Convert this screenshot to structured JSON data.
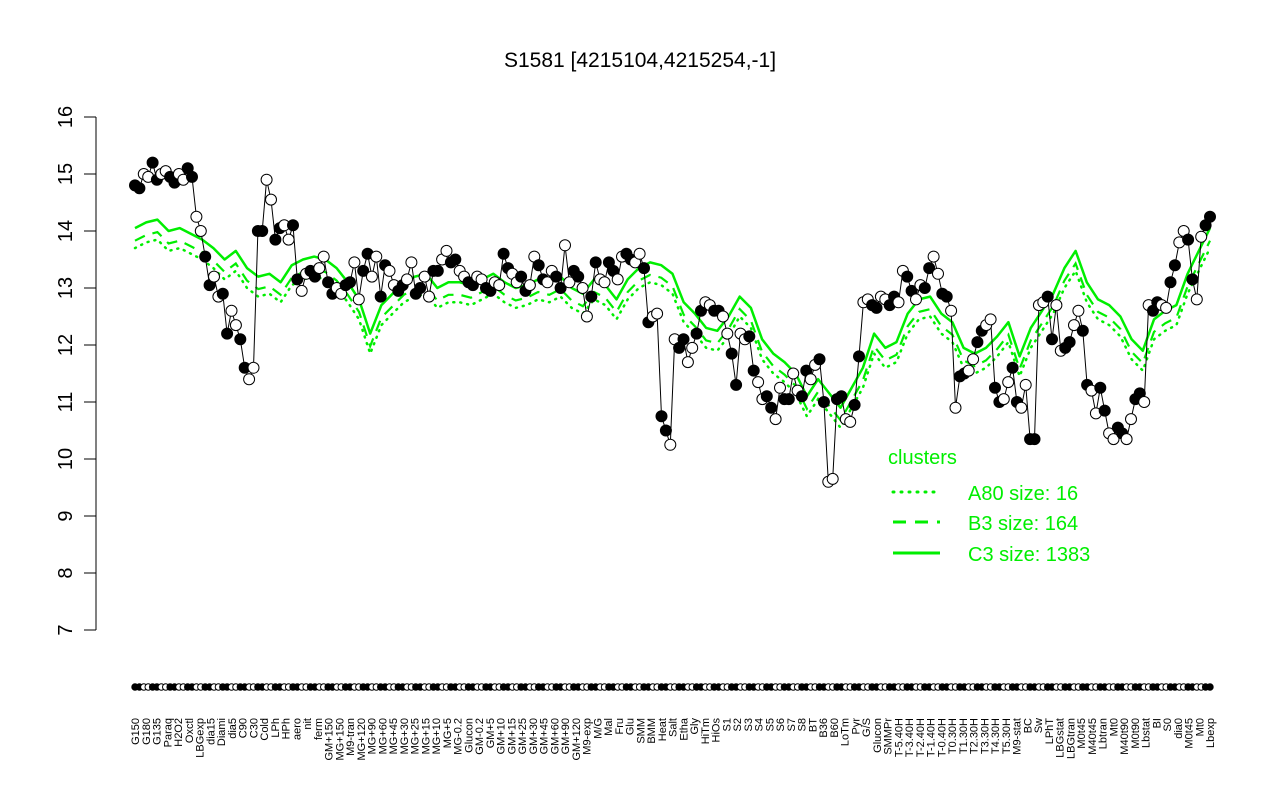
{
  "chart_data": {
    "type": "line",
    "title": "S1581 [4215104,4215254,-1]",
    "xlabel": "",
    "ylabel": "",
    "ylim": [
      7,
      16
    ],
    "yticks": [
      "7",
      "8",
      "9",
      "10",
      "11",
      "12",
      "13",
      "14",
      "15",
      "16"
    ],
    "grid": false,
    "legend_position": "right",
    "legend": {
      "title": "clusters",
      "entries": [
        {
          "label": "A80 size: 16",
          "style": "dotted"
        },
        {
          "label": "B3 size: 164",
          "style": "dashed"
        },
        {
          "label": "C3 size: 1383",
          "style": "solid"
        }
      ]
    },
    "colors": {
      "series": "#00ee00",
      "points": "#000000",
      "axis": "#000000"
    },
    "xtick_labels": [
      "G150",
      "G180",
      "G135",
      "Paraq",
      "H2O2",
      "Oxctl",
      "LBGexp",
      "dia15",
      "Diami",
      "dia5",
      "C90",
      "C30",
      "Cold",
      "LPh",
      "HPh",
      "aero",
      "nit",
      "ferm",
      "GM+150",
      "MG+150",
      "M9-tran",
      "MG+120",
      "MG+90",
      "MG+60",
      "MG+45",
      "MG+30",
      "MG+25",
      "MG+15",
      "MG+10",
      "MG+5",
      "MG-0.2",
      "Glucon",
      "GM-0.2",
      "GM+5",
      "GM+10",
      "GM+15",
      "GM+25",
      "GM+30",
      "GM+45",
      "GM+60",
      "GM+90",
      "GM+120",
      "M9-exp",
      "M/G",
      "Mal",
      "Fru",
      "Glu",
      "SMM",
      "BMM",
      "Heat",
      "Salt",
      "Etha",
      "Gly",
      "HiTm",
      "HiOs",
      "S1",
      "S2",
      "S3",
      "S4",
      "S5",
      "S6",
      "S7",
      "S8",
      "BT",
      "B36",
      "B60",
      "LoTm",
      "Pyr",
      "G/S",
      "Glucon",
      "SMMPr",
      "T-5.40H",
      "T-3.40H",
      "T-2.40H",
      "T-1.40H",
      "T-0.40H",
      "T0.30H",
      "T1.30H",
      "T2.30H",
      "T3.30H",
      "T4.30H",
      "T5.30H",
      "M9-stat",
      "BC",
      "Sw",
      "LPhT",
      "LBGstat",
      "LBGtran",
      "M0t45",
      "M40t45",
      "Lbtran",
      "Mt0",
      "M40t90",
      "M0t90",
      "Lbstat",
      "BI",
      "S0",
      "dia0",
      "M0t45",
      "Mt0",
      "Lbexp"
    ],
    "series_points": [
      14.8,
      14.75,
      15.0,
      14.95,
      15.2,
      14.9,
      15.0,
      15.05,
      14.95,
      14.85,
      15.0,
      14.9,
      15.1,
      14.95,
      14.25,
      14.0,
      13.55,
      13.05,
      13.2,
      12.85,
      12.9,
      12.2,
      12.6,
      12.35,
      12.1,
      11.6,
      11.4,
      11.6,
      14.0,
      14.0,
      14.9,
      14.55,
      13.85,
      14.05,
      14.1,
      13.85,
      14.1,
      13.15,
      12.95,
      13.25,
      13.3,
      13.2,
      13.35,
      13.55,
      13.1,
      12.9,
      13.0,
      12.9,
      13.05,
      13.1,
      13.45,
      12.8,
      13.3,
      13.6,
      13.2,
      13.55,
      12.85,
      13.4,
      13.3,
      13.05,
      12.95,
      13.05,
      13.15,
      13.45,
      12.9,
      13.0,
      13.2,
      12.85,
      13.3,
      13.3,
      13.5,
      13.65,
      13.45,
      13.5,
      13.3,
      13.2,
      13.1,
      13.05,
      13.2,
      13.15,
      13.0,
      12.95,
      13.1,
      13.05,
      13.6,
      13.35,
      13.25,
      13.1,
      13.2,
      12.95,
      13.05,
      13.55,
      13.4,
      13.15,
      13.1,
      13.3,
      13.2,
      13.0,
      13.75,
      13.1,
      13.3,
      13.2,
      13.0,
      12.5,
      12.85,
      13.45,
      13.15,
      13.1,
      13.45,
      13.3,
      13.15,
      13.55,
      13.6,
      13.5,
      13.45,
      13.6,
      13.35,
      12.4,
      12.5,
      12.55,
      10.75,
      10.5,
      10.25,
      12.1,
      11.95,
      12.1,
      11.7,
      11.95,
      12.2,
      12.6,
      12.75,
      12.7,
      12.6,
      12.6,
      12.5,
      12.2,
      11.85,
      11.3,
      12.2,
      12.1,
      12.15,
      11.55,
      11.35,
      11.05,
      11.1,
      10.9,
      10.7,
      11.25,
      11.05,
      11.05,
      11.5,
      11.2,
      11.1,
      11.55,
      11.4,
      11.65,
      11.75,
      11.0,
      9.6,
      9.65,
      11.05,
      11.1,
      10.7,
      10.65,
      10.95,
      11.8,
      12.75,
      12.8,
      12.7,
      12.65,
      12.85,
      12.8,
      12.7,
      12.85,
      12.75,
      13.3,
      13.2,
      12.95,
      12.8,
      13.05,
      13.0,
      13.35,
      13.55,
      13.25,
      12.9,
      12.85,
      12.6,
      10.9,
      11.45,
      11.5,
      11.55,
      11.75,
      12.05,
      12.25,
      12.35,
      12.45,
      11.25,
      11.0,
      11.05,
      11.35,
      11.6,
      11.0,
      10.9,
      11.3,
      10.35,
      10.35,
      12.7,
      12.75,
      12.85,
      12.1,
      12.7,
      11.9,
      11.95,
      12.05,
      12.35,
      12.6,
      12.25,
      11.3,
      11.2,
      10.8,
      11.25,
      10.85,
      10.45,
      10.35,
      10.55,
      10.45,
      10.35,
      10.7,
      11.05,
      11.15,
      11.0,
      12.7,
      12.6,
      12.75,
      12.7,
      12.65,
      13.1,
      13.4,
      13.8,
      14.0,
      13.85,
      13.15,
      12.8,
      13.9,
      14.1,
      14.25
    ],
    "cluster_lines": {
      "C3": [
        14.05,
        14.15,
        14.2,
        14.0,
        14.05,
        13.95,
        13.85,
        13.7,
        13.5,
        13.65,
        13.35,
        13.2,
        13.25,
        13.1,
        13.4,
        13.5,
        13.55,
        13.5,
        13.35,
        13.1,
        12.8,
        12.2,
        12.7,
        12.9,
        13.1,
        13.2,
        13.25,
        13.0,
        13.1,
        13.1,
        13.05,
        13.15,
        13.25,
        13.1,
        13.0,
        13.05,
        13.15,
        13.1,
        13.2,
        13.0,
        12.9,
        13.15,
        13.05,
        12.8,
        13.15,
        13.35,
        13.45,
        13.4,
        13.25,
        12.75,
        12.55,
        12.3,
        12.25,
        12.5,
        12.85,
        12.65,
        12.1,
        11.85,
        11.7,
        11.5,
        11.1,
        11.4,
        11.15,
        10.9,
        11.25,
        11.6,
        12.2,
        11.95,
        12.05,
        12.55,
        12.8,
        12.85,
        12.55,
        12.4,
        11.95,
        11.85,
        11.95,
        12.15,
        12.4,
        11.8,
        12.3,
        12.6,
        12.9,
        13.35,
        13.65,
        13.1,
        12.8,
        12.7,
        12.5,
        12.1,
        11.9,
        12.45,
        12.6,
        12.7,
        13.25,
        13.65,
        14.05
      ]
    }
  }
}
